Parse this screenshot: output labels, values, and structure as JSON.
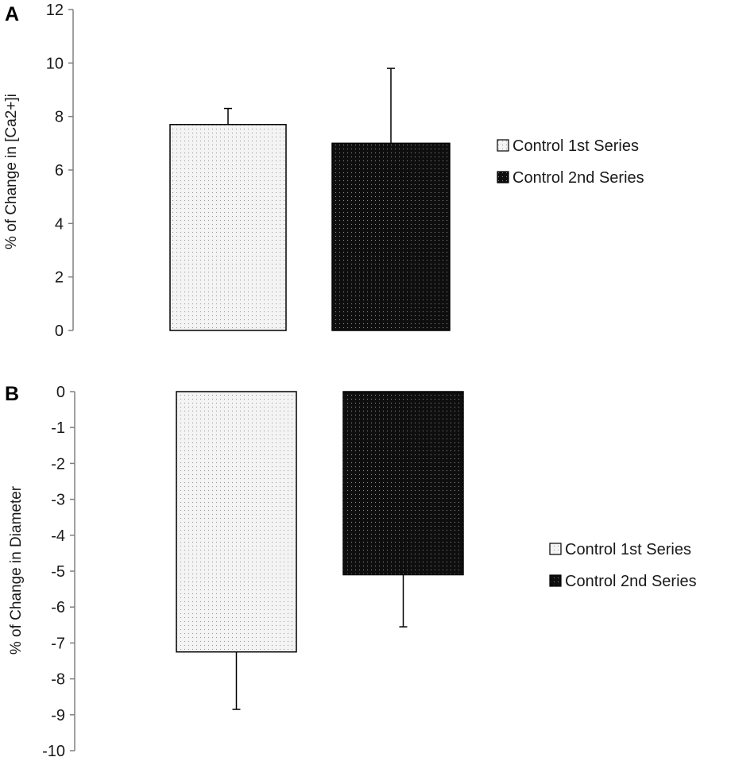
{
  "chart_data": [
    {
      "panel": "A",
      "type": "bar",
      "categories": [
        "Control 1st Series",
        "Control 2nd Series"
      ],
      "series": [
        {
          "name": "Control 1st Series",
          "value": 7.7,
          "error": 0.6,
          "fill": "dots-light"
        },
        {
          "name": "Control 2nd Series",
          "value": 7.0,
          "error": 2.8,
          "fill": "dots-dark"
        }
      ],
      "ylabel": "% of Change in [Ca2+]i",
      "ylim": [
        0,
        12
      ],
      "yticks": [
        0,
        2,
        4,
        6,
        8,
        10,
        12
      ],
      "grid": false,
      "legend": "right"
    },
    {
      "panel": "B",
      "type": "bar",
      "categories": [
        "Control 1st Series",
        "Control 2nd Series"
      ],
      "series": [
        {
          "name": "Control 1st Series",
          "value": -7.25,
          "error": 1.6,
          "fill": "dots-light"
        },
        {
          "name": "Control 2nd Series",
          "value": -5.1,
          "error": 1.45,
          "fill": "dots-dark"
        }
      ],
      "ylabel": "% of Change in Diameter",
      "ylim": [
        -10,
        0
      ],
      "yticks": [
        0,
        -1,
        -2,
        -3,
        -4,
        -5,
        -6,
        -7,
        -8,
        -9,
        -10
      ],
      "grid": false,
      "legend": "right"
    }
  ],
  "colors": {
    "axis": "#808080",
    "bar_edge": "#000000",
    "light_fill": "#f2f2f2",
    "dark_fill": "#111111"
  }
}
